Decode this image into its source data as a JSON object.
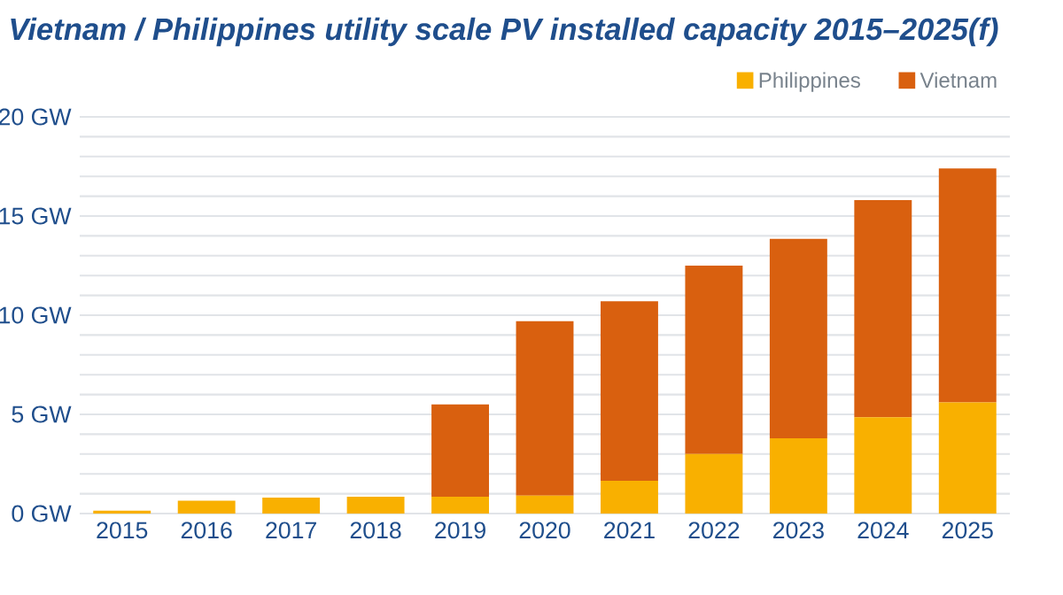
{
  "chart_data": {
    "type": "bar",
    "title": "Vietnam / Philippines utility scale PV installed capacity 2015–2025(f)",
    "categories": [
      "2015",
      "2016",
      "2017",
      "2018",
      "2019",
      "2020",
      "2021",
      "2022",
      "2023",
      "2024",
      "2025"
    ],
    "series": [
      {
        "name": "Philippines",
        "color": "#f9b000",
        "values": [
          0.15,
          0.65,
          0.8,
          0.85,
          0.85,
          0.9,
          1.65,
          3.0,
          3.8,
          4.85,
          5.6
        ]
      },
      {
        "name": "Vietnam",
        "color": "#d9600f",
        "values": [
          0,
          0,
          0,
          0,
          4.65,
          8.8,
          9.05,
          9.5,
          10.05,
          10.95,
          11.8
        ]
      }
    ],
    "stacked": true,
    "ylim": [
      0,
      20
    ],
    "yticks": [
      {
        "value": 0,
        "label": "0 GW"
      },
      {
        "value": 1,
        "label": null
      },
      {
        "value": 2,
        "label": null
      },
      {
        "value": 3,
        "label": null
      },
      {
        "value": 4,
        "label": null
      },
      {
        "value": 5,
        "label": "5 GW"
      },
      {
        "value": 6,
        "label": null
      },
      {
        "value": 7,
        "label": null
      },
      {
        "value": 8,
        "label": null
      },
      {
        "value": 9,
        "label": null
      },
      {
        "value": 10,
        "label": "10 GW"
      },
      {
        "value": 11,
        "label": null
      },
      {
        "value": 12,
        "label": null
      },
      {
        "value": 13,
        "label": null
      },
      {
        "value": 14,
        "label": null
      },
      {
        "value": 15,
        "label": "15 GW"
      },
      {
        "value": 16,
        "label": null
      },
      {
        "value": 17,
        "label": null
      },
      {
        "value": 18,
        "label": null
      },
      {
        "value": 19,
        "label": null
      },
      {
        "value": 20,
        "label": "20 GW"
      }
    ],
    "grid": "y",
    "legend": "top right"
  }
}
